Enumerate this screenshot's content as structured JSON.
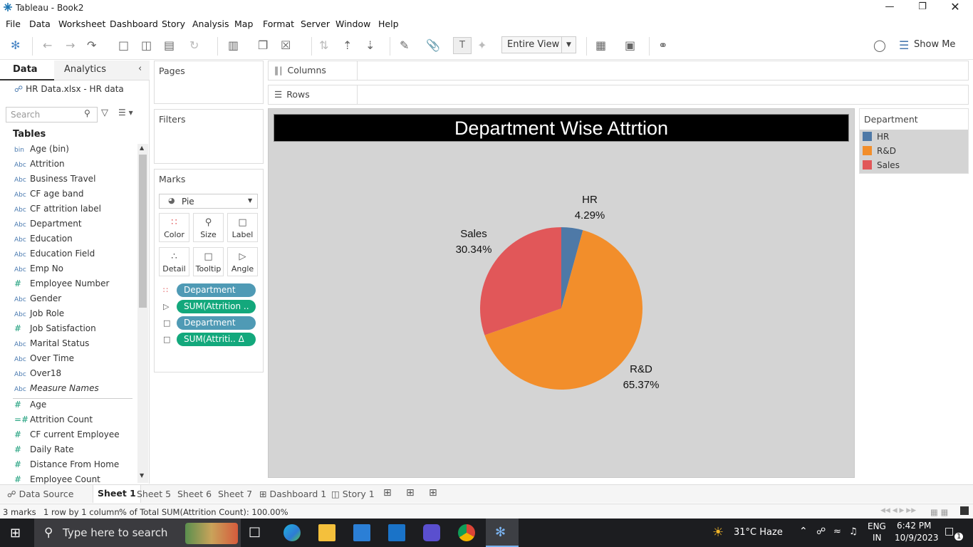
{
  "window": {
    "title": "Tableau - Book2"
  },
  "menu": [
    "File",
    "Data",
    "Worksheet",
    "Dashboard",
    "Story",
    "Analysis",
    "Map",
    "Format",
    "Server",
    "Window",
    "Help"
  ],
  "toolbar": {
    "fit_label": "Entire View",
    "show_me": "Show Me"
  },
  "data_pane": {
    "tabs": [
      "Data",
      "Analytics"
    ],
    "datasource": "HR Data.xlsx - HR data",
    "search_placeholder": "Search",
    "tables_heading": "Tables",
    "fields": [
      {
        "icon": "bin",
        "name": "Age (bin)"
      },
      {
        "icon": "Abc",
        "name": "Attrition"
      },
      {
        "icon": "Abc",
        "name": "Business Travel"
      },
      {
        "icon": "Abc",
        "name": "CF age band"
      },
      {
        "icon": "Abc",
        "name": "CF attrition label"
      },
      {
        "icon": "Abc",
        "name": "Department"
      },
      {
        "icon": "Abc",
        "name": "Education"
      },
      {
        "icon": "Abc",
        "name": "Education Field"
      },
      {
        "icon": "Abc",
        "name": "Emp No"
      },
      {
        "icon": "#",
        "name": "Employee Number"
      },
      {
        "icon": "Abc",
        "name": "Gender"
      },
      {
        "icon": "Abc",
        "name": "Job Role"
      },
      {
        "icon": "#",
        "name": "Job Satisfaction"
      },
      {
        "icon": "Abc",
        "name": "Marital Status"
      },
      {
        "icon": "Abc",
        "name": "Over Time"
      },
      {
        "icon": "Abc",
        "name": "Over18"
      },
      {
        "icon": "Abc",
        "name": "Measure Names"
      }
    ],
    "measures": [
      {
        "icon": "#",
        "name": "Age"
      },
      {
        "icon": "=#",
        "name": "Attrition Count"
      },
      {
        "icon": "#",
        "name": "CF current Employee"
      },
      {
        "icon": "#",
        "name": "Daily Rate"
      },
      {
        "icon": "#",
        "name": "Distance From Home"
      },
      {
        "icon": "#",
        "name": "Employee Count"
      }
    ]
  },
  "shelves": {
    "pages": "Pages",
    "filters": "Filters",
    "marks": "Marks",
    "mark_type": "Pie",
    "columns": "Columns",
    "rows": "Rows",
    "mark_buttons": [
      "Color",
      "Size",
      "Label",
      "Detail",
      "Tooltip",
      "Angle"
    ],
    "pills": [
      {
        "kind": "dim",
        "label": "Department"
      },
      {
        "kind": "mea",
        "label": "SUM(Attrition .."
      },
      {
        "kind": "dim",
        "label": "Department"
      },
      {
        "kind": "mea",
        "label": "SUM(Attriti..  Δ"
      }
    ]
  },
  "view": {
    "title": "Department Wise Attrtion"
  },
  "legend": {
    "title": "Department",
    "items": [
      {
        "label": "HR",
        "color": "#4e79a7"
      },
      {
        "label": "R&D",
        "color": "#f28e2b"
      },
      {
        "label": "Sales",
        "color": "#e15759"
      }
    ]
  },
  "chart_data": {
    "type": "pie",
    "title": "Department Wise Attrtion",
    "categories": [
      "HR",
      "R&D",
      "Sales"
    ],
    "values": [
      4.29,
      65.37,
      30.34
    ],
    "labels": [
      "4.29%",
      "65.37%",
      "30.34%"
    ],
    "colors": [
      "#4e79a7",
      "#f28e2b",
      "#e15759"
    ]
  },
  "sheet_tabs": [
    "Data Source",
    "Sheet 1",
    "Sheet 5",
    "Sheet 6",
    "Sheet 7",
    "Dashboard 1",
    "Story 1"
  ],
  "status": {
    "marks": "3 marks",
    "dims": "1 row by 1 column",
    "summary": "% of Total SUM(Attrition Count): 100.00%"
  },
  "taskbar": {
    "search": "Type here to search",
    "weather": "31°C  Haze",
    "lang1": "ENG",
    "lang2": "IN",
    "time": "6:42 PM",
    "date": "10/9/2023",
    "notif": "1"
  }
}
